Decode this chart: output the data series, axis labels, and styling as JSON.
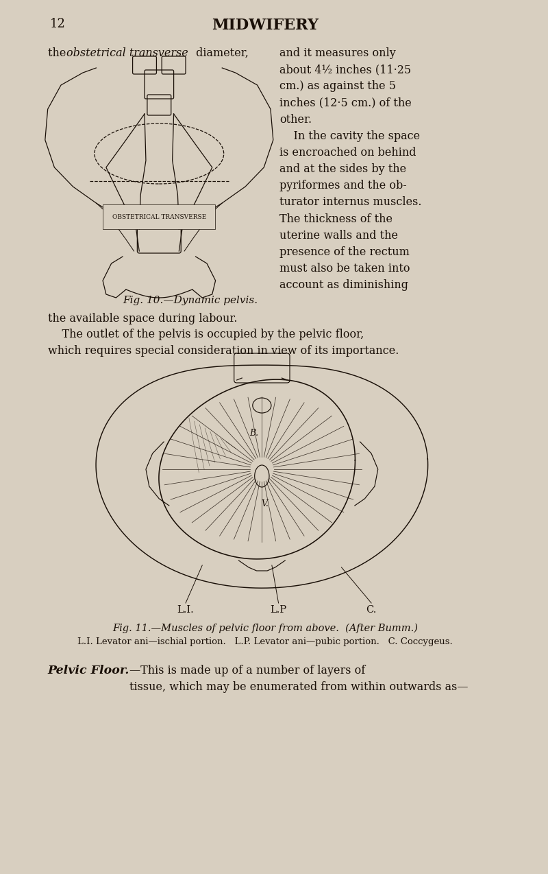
{
  "bg_color": "#d8cfc0",
  "page_number": "12",
  "header": "MIDWIFERY",
  "body_text_right": "and it measures only\nabout 4½ inches (11·25\ncm.) as against the 5\ninches (12·5 cm.) of the\nother.\n    In the cavity the space\nis encroached on behind\nand at the sides by the\npyriformes and the ob-\nturator internus muscles.\nThe thickness of the\nuterine walls and the\npresence of the rectum\nmust also be taken into\naccount as diminishing",
  "fig10_caption": "Fig. 10.—Dynamic pelvis.",
  "para2": "the available space during labour.",
  "para3": "    The outlet of the pelvis is occupied by the pelvic floor,\nwhich requires special consideration in view of its importance.",
  "fig11_caption": "Fig. 11.—Muscles of pelvic floor from above.  (After Bumm.)",
  "fig11_labels": "L.I. Levator ani—ischial portion.   L.P. Levator ani—pubic portion.   C. Coccygeus.",
  "pelvic_floor_bold": "Pelvic Floor.",
  "pelvic_floor_dash": "—This is made up of a number of layers of\ntissue, which may be enumerated from within outwards as—",
  "fig10_label_obst": "OBSTETRICAL TRANSVERSE",
  "fig11_label_li": "L.I.",
  "fig11_label_lp": "L.P",
  "fig11_label_c": "C.",
  "text_color": "#1a1008"
}
